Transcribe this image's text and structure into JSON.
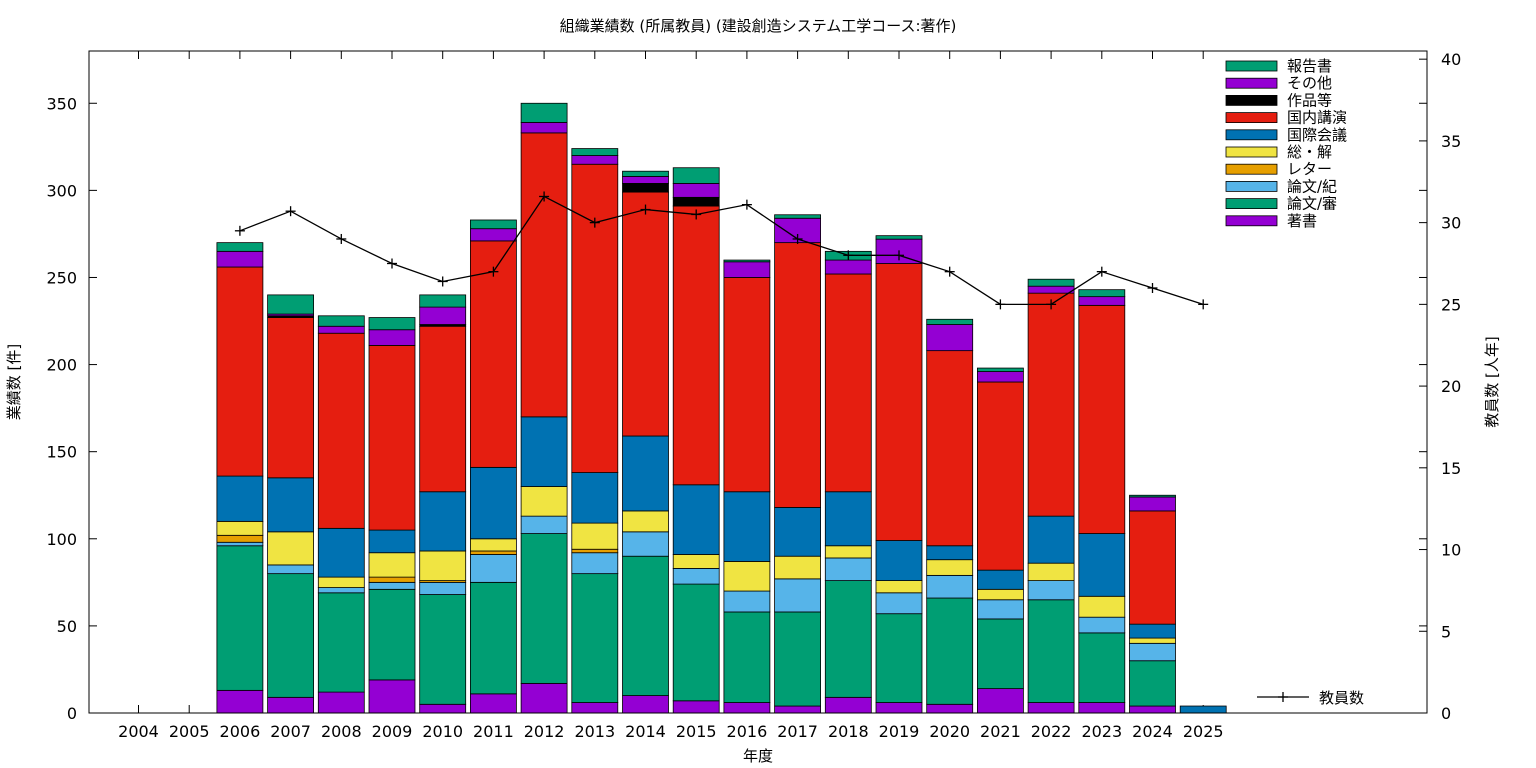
{
  "chart_data": {
    "type": "bar",
    "stacked": true,
    "title": "組織業績数 (所属教員) (建設創造システム工学コース:著作)",
    "xlabel": "年度",
    "ylabel": "業績数 [件]",
    "y2label": "教員数 [人年]",
    "ylim": [
      0,
      380
    ],
    "y2lim": [
      0,
      40.5
    ],
    "yticks": [
      0,
      50,
      100,
      150,
      200,
      250,
      300,
      350
    ],
    "y2ticks": [
      0,
      5,
      10,
      15,
      20,
      25,
      30,
      35,
      40
    ],
    "categories": [
      "2004",
      "2005",
      "2006",
      "2007",
      "2008",
      "2009",
      "2010",
      "2011",
      "2012",
      "2013",
      "2014",
      "2015",
      "2016",
      "2017",
      "2018",
      "2019",
      "2020",
      "2021",
      "2022",
      "2023",
      "2024",
      "2025"
    ],
    "legend_position": "top-right",
    "series": [
      {
        "name": "著書",
        "color": "#9400d3",
        "values": [
          0,
          0,
          13,
          9,
          12,
          19,
          5,
          11,
          17,
          6,
          10,
          7,
          6,
          4,
          9,
          6,
          5,
          14,
          6,
          6,
          4,
          0
        ]
      },
      {
        "name": "論文/審",
        "color": "#009e73",
        "values": [
          0,
          0,
          83,
          71,
          57,
          52,
          63,
          64,
          86,
          74,
          80,
          67,
          52,
          54,
          67,
          51,
          61,
          40,
          59,
          40,
          26,
          0
        ]
      },
      {
        "name": "論文/紀",
        "color": "#56b4e9",
        "values": [
          0,
          0,
          2,
          5,
          3,
          4,
          7,
          16,
          10,
          12,
          14,
          9,
          12,
          19,
          13,
          12,
          13,
          11,
          11,
          9,
          10,
          0
        ]
      },
      {
        "name": "レター",
        "color": "#e69f00",
        "values": [
          0,
          0,
          4,
          0,
          0,
          3,
          1,
          2,
          0,
          2,
          0,
          0,
          0,
          0,
          0,
          0,
          0,
          0,
          0,
          0,
          0,
          0
        ]
      },
      {
        "name": "総・解",
        "color": "#f0e442",
        "values": [
          0,
          0,
          8,
          19,
          6,
          14,
          17,
          7,
          17,
          15,
          12,
          8,
          17,
          13,
          7,
          7,
          9,
          6,
          10,
          12,
          3,
          0
        ]
      },
      {
        "name": "国際会議",
        "color": "#0072b2",
        "values": [
          0,
          0,
          26,
          31,
          28,
          13,
          34,
          41,
          40,
          29,
          43,
          40,
          40,
          28,
          31,
          23,
          8,
          11,
          27,
          36,
          8,
          4
        ]
      },
      {
        "name": "国内講演",
        "color": "#e51e10",
        "values": [
          0,
          0,
          120,
          92,
          112,
          106,
          95,
          130,
          163,
          177,
          140,
          160,
          123,
          152,
          125,
          159,
          112,
          108,
          128,
          131,
          65,
          0
        ]
      },
      {
        "name": "作品等",
        "color": "#000000",
        "values": [
          0,
          0,
          0,
          1,
          0,
          0,
          1,
          0,
          0,
          0,
          5,
          5,
          0,
          0,
          0,
          0,
          0,
          0,
          0,
          0,
          0,
          0
        ]
      },
      {
        "name": "その他",
        "color": "#9400d3",
        "values": [
          0,
          0,
          9,
          1,
          4,
          9,
          10,
          7,
          6,
          5,
          4,
          8,
          9,
          14,
          8,
          14,
          15,
          6,
          4,
          5,
          8,
          0
        ]
      },
      {
        "name": "報告書",
        "color": "#009e73",
        "values": [
          0,
          0,
          5,
          11,
          6,
          7,
          7,
          5,
          11,
          4,
          3,
          9,
          1,
          2,
          5,
          2,
          3,
          2,
          4,
          4,
          1,
          0
        ]
      }
    ],
    "line": {
      "name": "教員数",
      "axis": "y2",
      "x": [
        "2006",
        "2007",
        "2008",
        "2009",
        "2010",
        "2011",
        "2012",
        "2013",
        "2014",
        "2015",
        "2016",
        "2017",
        "2018",
        "2019",
        "2020",
        "2021",
        "2022",
        "2023",
        "2024",
        "2025"
      ],
      "values": [
        29.5,
        30.7,
        29,
        27.5,
        26.4,
        27,
        31.6,
        30,
        30.8,
        30.5,
        31.1,
        29,
        28,
        28,
        27,
        25,
        25,
        27,
        26,
        25
      ]
    }
  }
}
